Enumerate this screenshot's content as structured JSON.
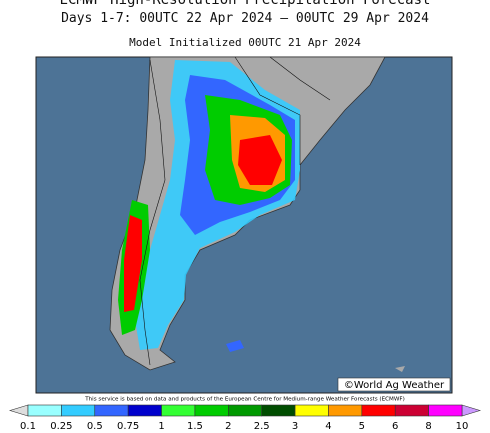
{
  "header": {
    "title": "ECMWF High-Resolution Precipitation Forecast",
    "subtitle": "Days 1-7: 00UTC 22 Apr 2024 – 00UTC 29 Apr 2024",
    "initialized": "Model Initialized 00UTC 21 Apr 2024"
  },
  "map": {
    "credit": "©World Ag Weather"
  },
  "footer": {
    "disclaimer": "This service is based on data and products of the European Centre for Medium-range Weather Forecasts (ECMWF)"
  },
  "legend": {
    "labels": [
      "0.1",
      "0.25",
      "0.5",
      "0.75",
      "1",
      "1.5",
      "2",
      "2.5",
      "3",
      "4",
      "5",
      "6",
      "8",
      "10"
    ],
    "colors": [
      "#99ffff",
      "#33ccff",
      "#3366ff",
      "#0000cc",
      "#33ff33",
      "#00cc00",
      "#009900",
      "#004d00",
      "#ffff00",
      "#ff9900",
      "#ff0000",
      "#cc0033",
      "#ff00ff"
    ]
  }
}
